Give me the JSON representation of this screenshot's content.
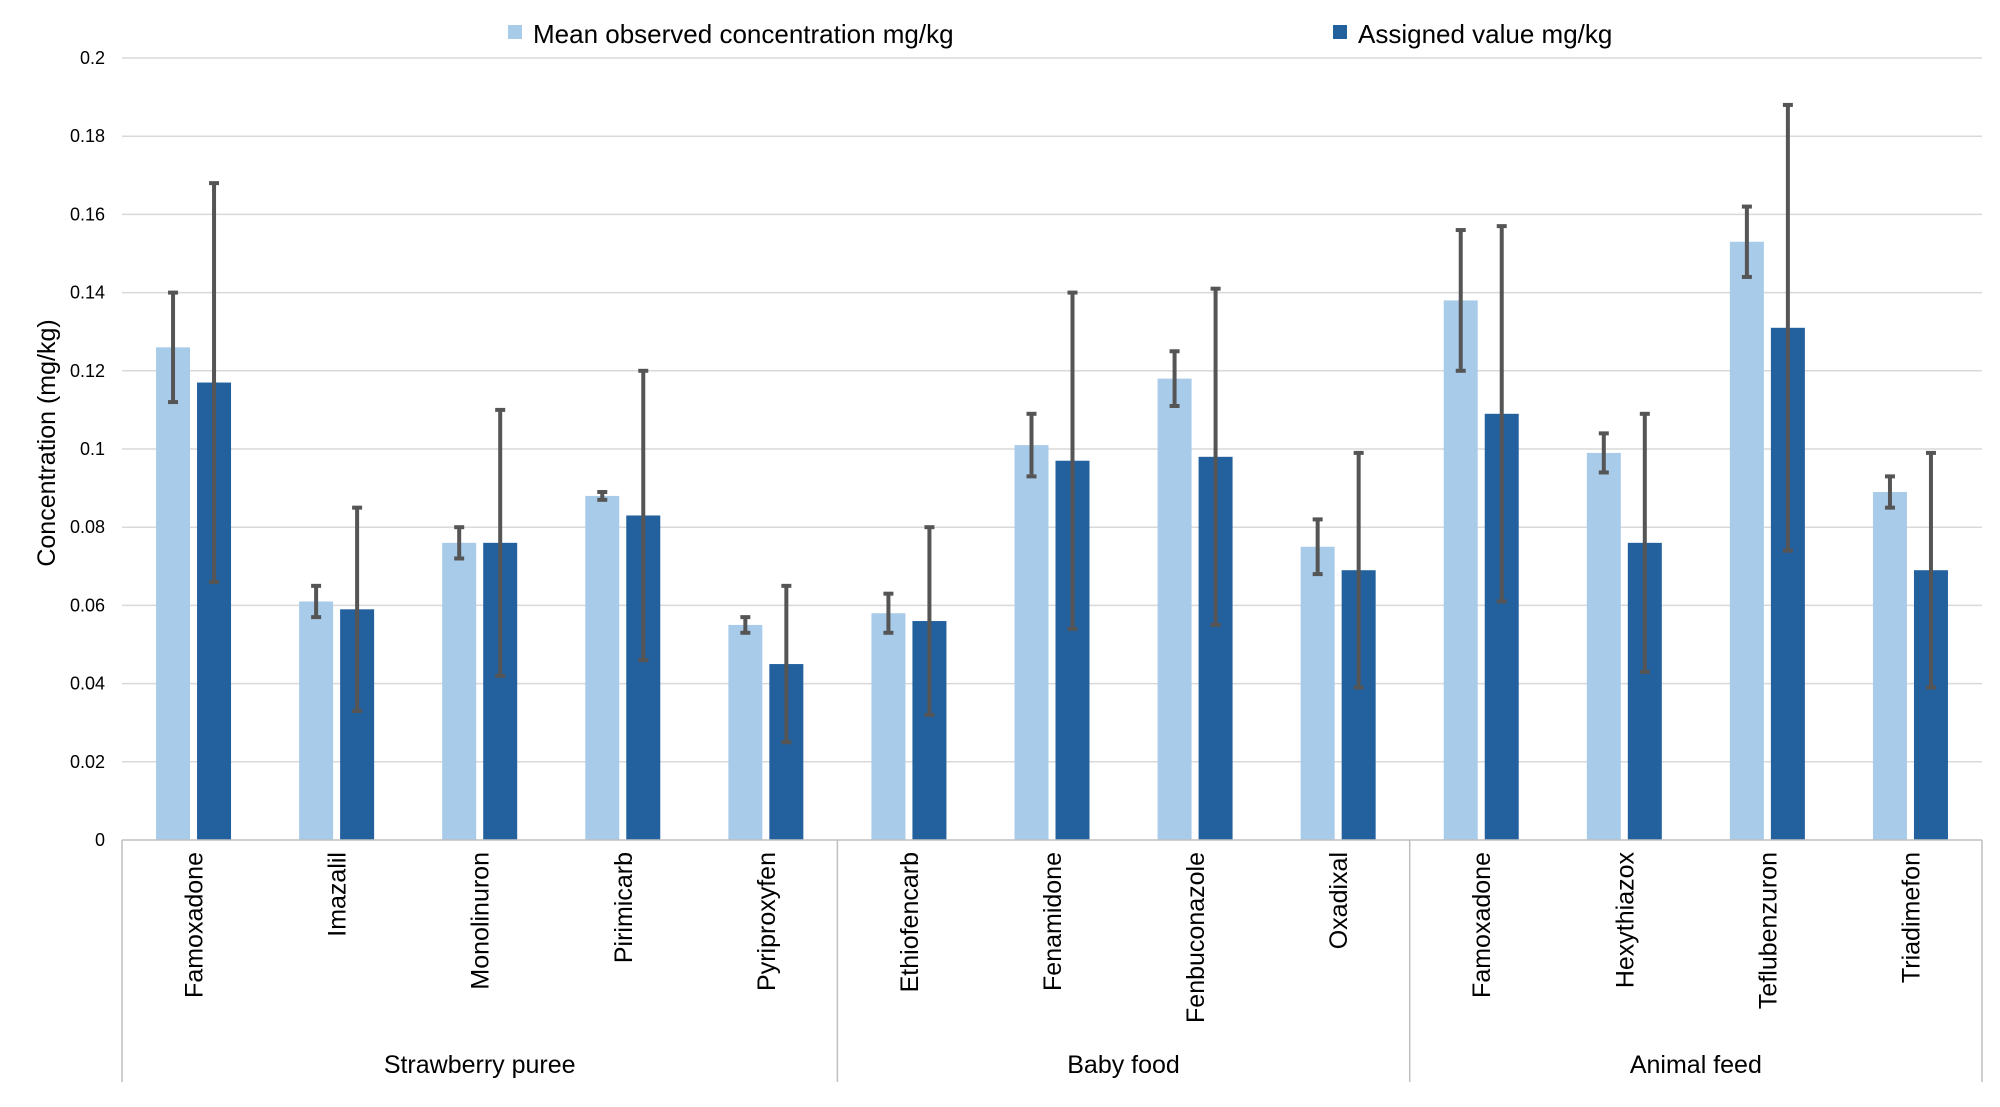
{
  "chart_data": {
    "type": "bar",
    "title": "",
    "xlabel": "",
    "ylabel": "Concentration (mg/kg)",
    "ylim": [
      0,
      0.2
    ],
    "yticks": [
      "0",
      "0.02",
      "0.04",
      "0.06",
      "0.08",
      "0.1",
      "0.12",
      "0.14",
      "0.16",
      "0.18",
      "0.2"
    ],
    "grid": true,
    "legend_position": "top",
    "groups": [
      {
        "label": "Strawberry puree",
        "count": 5
      },
      {
        "label": "Baby food",
        "count": 4
      },
      {
        "label": "Animal feed",
        "count": 4
      }
    ],
    "categories": [
      "Famoxadone",
      "Imazalil",
      "Monolinuron",
      "Pirimicarb",
      "Pyriproxyfen",
      "Ethiofencarb",
      "Fenamidone",
      "Fenbuconazole",
      "Oxadixal",
      "Famoxadone",
      "Hexythiazox",
      "Teflubenzuron",
      "Triadimefon"
    ],
    "series": [
      {
        "name": "Mean observed concentration mg/kg",
        "color": "#a9cbea",
        "values": [
          0.126,
          0.061,
          0.076,
          0.088,
          0.055,
          0.058,
          0.101,
          0.118,
          0.075,
          0.138,
          0.099,
          0.153,
          0.089
        ],
        "err_low": [
          0.112,
          0.057,
          0.072,
          0.087,
          0.053,
          0.053,
          0.093,
          0.111,
          0.068,
          0.12,
          0.094,
          0.144,
          0.085
        ],
        "err_high": [
          0.14,
          0.065,
          0.08,
          0.089,
          0.057,
          0.063,
          0.109,
          0.125,
          0.082,
          0.156,
          0.104,
          0.162,
          0.093
        ]
      },
      {
        "name": "Assigned value mg/kg",
        "color": "#23609e",
        "values": [
          0.117,
          0.059,
          0.076,
          0.083,
          0.045,
          0.056,
          0.097,
          0.098,
          0.069,
          0.109,
          0.076,
          0.131,
          0.069
        ],
        "err_low": [
          0.066,
          0.033,
          0.042,
          0.046,
          0.025,
          0.032,
          0.054,
          0.055,
          0.039,
          0.061,
          0.043,
          0.074,
          0.039
        ],
        "err_high": [
          0.168,
          0.085,
          0.11,
          0.12,
          0.065,
          0.08,
          0.14,
          0.141,
          0.099,
          0.157,
          0.109,
          0.188,
          0.099
        ]
      }
    ]
  }
}
